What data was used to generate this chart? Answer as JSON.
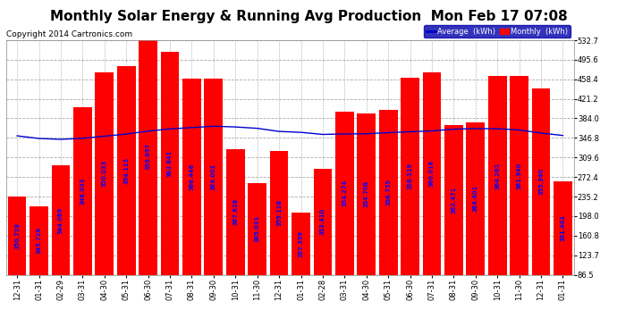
{
  "title": "Monthly Solar Energy & Running Avg Production  Mon Feb 17 07:08",
  "copyright": "Copyright 2014 Cartronics.com",
  "bar_color": "#ff0000",
  "avg_line_color": "#0000cc",
  "background_color": "#ffffff",
  "plot_bg_color": "#ffffff",
  "grid_color_h": "#cccccc",
  "grid_color_v": "#cccccc",
  "categories": [
    "12-31",
    "01-31",
    "02-29",
    "03-31",
    "04-30",
    "05-31",
    "06-30",
    "07-31",
    "08-31",
    "09-30",
    "10-31",
    "11-30",
    "12-31",
    "01-31",
    "02-28",
    "03-31",
    "04-30",
    "05-31",
    "06-30",
    "07-31",
    "08-31",
    "09-30",
    "10-31",
    "11-30",
    "12-31",
    "01-31"
  ],
  "monthly_values": [
    236,
    216,
    294,
    405,
    471,
    484,
    537,
    510,
    459,
    459,
    326,
    261,
    322,
    205,
    288,
    397,
    393,
    400,
    462,
    472,
    372,
    377,
    464,
    464,
    441,
    264
  ],
  "avg_values": [
    350.728,
    345.729,
    344.069,
    346.033,
    350.033,
    354.115,
    359.697,
    363.841,
    366.446,
    369.001,
    367.628,
    365.031,
    359.128,
    357.359,
    353.41,
    354.274,
    354.708,
    356.755,
    358.519,
    360.016,
    363.471,
    364.401,
    364.261,
    361.94,
    355.94,
    351.401
  ],
  "bar_labels": [
    "350.728",
    "345.729",
    "344.069",
    "346.033",
    "350.033",
    "354.115",
    "359.697",
    "363.841",
    "366.446",
    "369.001",
    "367.628",
    "365.031",
    "359.128",
    "357.359",
    "353.410",
    "354.274",
    "354.708",
    "356.755",
    "358.519",
    "360.016",
    "363.471",
    "364.401",
    "364.261",
    "361.940",
    "355.940",
    "351.401"
  ],
  "ylim": [
    86.5,
    532.7
  ],
  "yticks": [
    86.5,
    123.7,
    160.8,
    198.0,
    235.2,
    272.4,
    309.6,
    346.8,
    384.0,
    421.2,
    458.4,
    495.6,
    532.7
  ],
  "legend_avg_label": "Average  (kWh)",
  "legend_monthly_label": "Monthly  (kWh)",
  "title_fontsize": 11,
  "copyright_fontsize": 6.5,
  "tick_fontsize": 6,
  "bar_label_fontsize": 4.8
}
